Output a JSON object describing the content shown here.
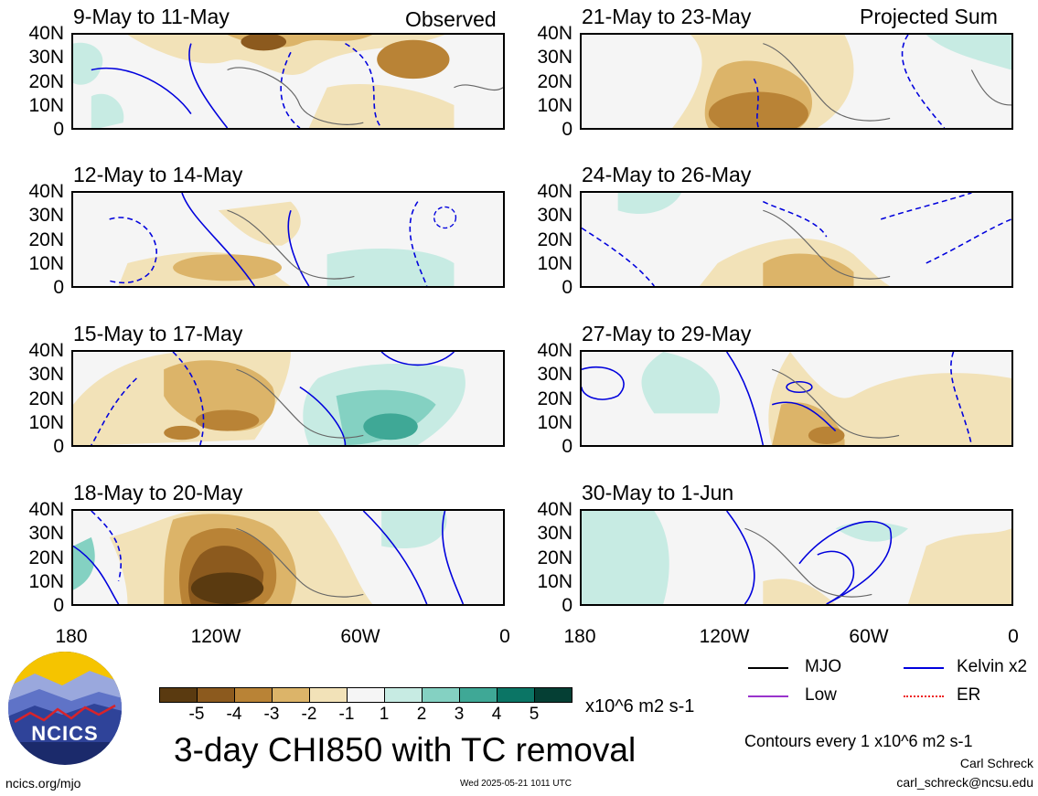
{
  "observed_label": "Observed",
  "projected_label": "Projected Sum",
  "lat_labels": [
    "40N",
    "30N",
    "20N",
    "10N",
    "0"
  ],
  "lon_labels": [
    "180",
    "120W",
    "60W",
    "0"
  ],
  "panels": {
    "left": [
      {
        "title": "9-May to 11-May"
      },
      {
        "title": "12-May to 14-May"
      },
      {
        "title": "15-May to 17-May"
      },
      {
        "title": "18-May to 20-May"
      }
    ],
    "right": [
      {
        "title": "21-May to 23-May"
      },
      {
        "title": "24-May to 26-May"
      },
      {
        "title": "27-May to 29-May"
      },
      {
        "title": "30-May to 1-Jun"
      }
    ]
  },
  "colorbar": {
    "labels": [
      "-5",
      "-4",
      "-3",
      "-2",
      "-1",
      "1",
      "2",
      "3",
      "4",
      "5"
    ],
    "unit": "x10^6 m2 s-1",
    "colors": [
      "#5a3a10",
      "#8c5a1e",
      "#b98336",
      "#dcb469",
      "#f2e2b8",
      "#f5f5f5",
      "#c7ebe3",
      "#84d1c2",
      "#3fa896",
      "#0b7565",
      "#053f34"
    ]
  },
  "main_title": "3-day CHI850 with TC removal",
  "legend": {
    "items": [
      {
        "label": "MJO",
        "color": "#000000",
        "style": "solid"
      },
      {
        "label": "Kelvin x2",
        "color": "#0000dd",
        "style": "solid"
      },
      {
        "label": "Low",
        "color": "#9933cc",
        "style": "solid"
      },
      {
        "label": "ER",
        "color": "#ee2222",
        "style": "dotted"
      }
    ]
  },
  "contours_note": "Contours every 1 x10^6 m2 s-1",
  "author": "Carl Schreck",
  "email": "carl_schreck@ncsu.edu",
  "site": "ncics.org/mjo",
  "timestamp": "Wed 2025-05-21 1011 UTC",
  "logo_text": "NCICS"
}
